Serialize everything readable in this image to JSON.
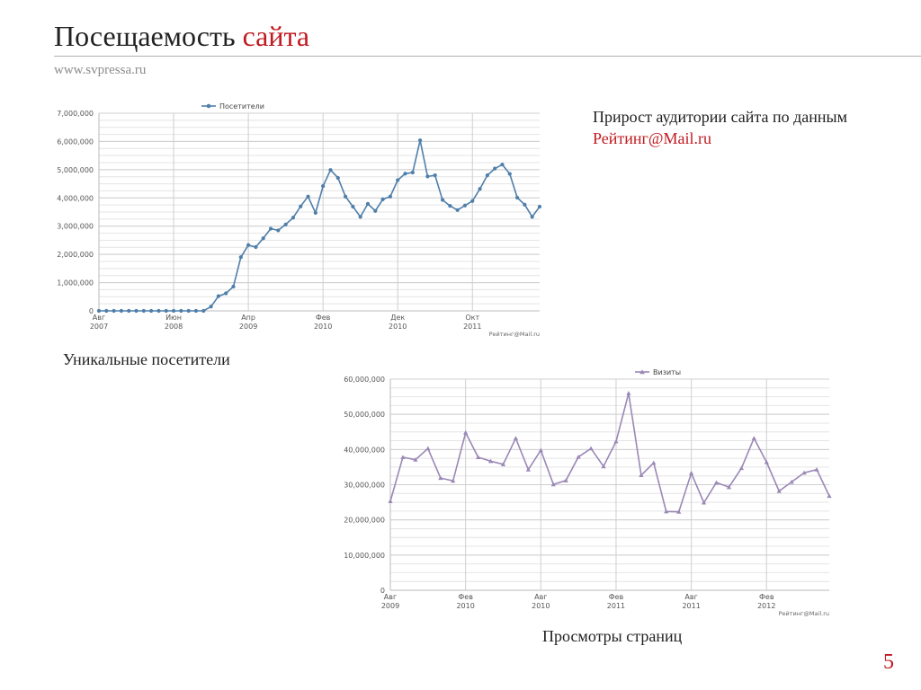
{
  "header": {
    "title_main": "Посещаемость",
    "title_accent": "сайта",
    "url": "www.svpressa.ru"
  },
  "note": {
    "text": "Прирост аудитории сайта по данным",
    "accent": "Рейтинг@Mail.ru"
  },
  "captions": {
    "visitors": "Уникальные посетители",
    "pageviews": "Просмотры страниц"
  },
  "page_number": "5",
  "colors": {
    "accent": "#c0191f",
    "series1": "#4f7faa",
    "series2": "#9a88b6"
  },
  "chart_data": [
    {
      "type": "line",
      "legend": "Посетители",
      "legend_position": "top-center",
      "source": "Рейтинг@Mail.ru",
      "grid": true,
      "ylim": [
        0,
        7000000
      ],
      "yticks": [
        {
          "v": 0,
          "label": "0"
        },
        {
          "v": 1000000,
          "label": "1,000,000"
        },
        {
          "v": 2000000,
          "label": "2,000,000"
        },
        {
          "v": 3000000,
          "label": "3,000,000"
        },
        {
          "v": 4000000,
          "label": "4,000,000"
        },
        {
          "v": 5000000,
          "label": "5,000,000"
        },
        {
          "v": 6000000,
          "label": "6,000,000"
        },
        {
          "v": 7000000,
          "label": "7,000,000"
        }
      ],
      "xticks": [
        {
          "i": 0,
          "l1": "Авг",
          "l2": "2007"
        },
        {
          "i": 10,
          "l1": "Июн",
          "l2": "2008"
        },
        {
          "i": 20,
          "l1": "Апр",
          "l2": "2009"
        },
        {
          "i": 30,
          "l1": "Фев",
          "l2": "2010"
        },
        {
          "i": 40,
          "l1": "Дек",
          "l2": "2010"
        },
        {
          "i": 50,
          "l1": "Окт",
          "l2": "2011"
        }
      ],
      "values": [
        0,
        0,
        0,
        0,
        0,
        0,
        0,
        0,
        0,
        0,
        0,
        0,
        0,
        0,
        0,
        150000,
        520000,
        620000,
        860000,
        1900000,
        2330000,
        2260000,
        2570000,
        2910000,
        2850000,
        3060000,
        3300000,
        3700000,
        4050000,
        3470000,
        4420000,
        4990000,
        4710000,
        4050000,
        3690000,
        3330000,
        3790000,
        3540000,
        3950000,
        4050000,
        4630000,
        4860000,
        4900000,
        6040000,
        4760000,
        4800000,
        3930000,
        3720000,
        3570000,
        3730000,
        3890000,
        4320000,
        4800000,
        5040000,
        5180000,
        4850000,
        4010000,
        3760000,
        3330000,
        3690000
      ]
    },
    {
      "type": "line",
      "legend": "Визиты",
      "legend_position": "top-center",
      "source": "Рейтинг@Mail.ru",
      "grid": true,
      "ylim": [
        0,
        60000000
      ],
      "yticks": [
        {
          "v": 0,
          "label": "0"
        },
        {
          "v": 10000000,
          "label": "10,000,000"
        },
        {
          "v": 20000000,
          "label": "20,000,000"
        },
        {
          "v": 30000000,
          "label": "30,000,000"
        },
        {
          "v": 40000000,
          "label": "40,000,000"
        },
        {
          "v": 50000000,
          "label": "50,000,000"
        },
        {
          "v": 60000000,
          "label": "60,000,000"
        }
      ],
      "xticks": [
        {
          "i": 0,
          "l1": "Авг",
          "l2": "2009"
        },
        {
          "i": 6,
          "l1": "Фев",
          "l2": "2010"
        },
        {
          "i": 12,
          "l1": "Авг",
          "l2": "2010"
        },
        {
          "i": 18,
          "l1": "Фев",
          "l2": "2011"
        },
        {
          "i": 24,
          "l1": "Авг",
          "l2": "2011"
        },
        {
          "i": 30,
          "l1": "Фев",
          "l2": "2012"
        }
      ],
      "values": [
        25300000,
        37800000,
        37100000,
        40300000,
        31900000,
        31100000,
        44800000,
        37800000,
        36700000,
        35800000,
        43200000,
        34300000,
        39800000,
        30100000,
        31200000,
        37900000,
        40300000,
        35200000,
        42300000,
        56000000,
        32700000,
        36200000,
        22400000,
        22300000,
        33300000,
        24900000,
        30600000,
        29300000,
        34700000,
        43200000,
        36400000,
        28200000,
        30800000,
        33400000,
        34300000,
        26800000
      ]
    }
  ]
}
